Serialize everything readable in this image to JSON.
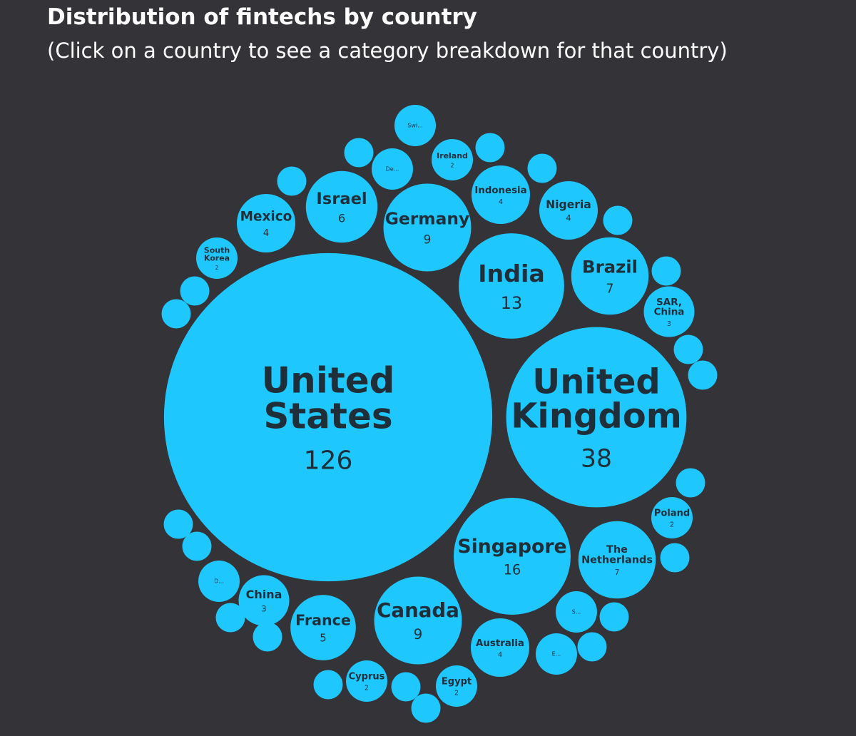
{
  "title": "Distribution of fintechs by country",
  "subtitle": "(Click on a country to see a category breakdown for that country)",
  "chart_data": {
    "type": "bubble",
    "color": "#1ec8ff",
    "categories": [
      "United States",
      "United Kingdom",
      "India",
      "Singapore",
      "Canada",
      "Germany",
      "Israel",
      "Brazil",
      "The Netherlands",
      "France",
      "Mexico",
      "Nigeria",
      "Indonesia",
      "Australia",
      "China",
      "SAR, China",
      "South Korea",
      "Ireland",
      "Poland",
      "Cyprus",
      "Egypt",
      "Swi...",
      "De...",
      "D...",
      "S...",
      "E...",
      null,
      null,
      null,
      null,
      null,
      null,
      null,
      null,
      null,
      null,
      null,
      null,
      null,
      null,
      null,
      null,
      null,
      null,
      null,
      null,
      null
    ],
    "values": [
      126,
      38,
      13,
      16,
      9,
      9,
      6,
      7,
      7,
      5,
      4,
      4,
      4,
      4,
      3,
      3,
      2,
      2,
      2,
      2,
      2,
      2,
      2,
      2,
      2,
      2,
      1,
      1,
      1,
      1,
      1,
      1,
      1,
      1,
      1,
      1,
      1,
      1,
      1,
      1,
      1,
      1,
      1,
      1,
      1,
      1,
      1
    ]
  }
}
